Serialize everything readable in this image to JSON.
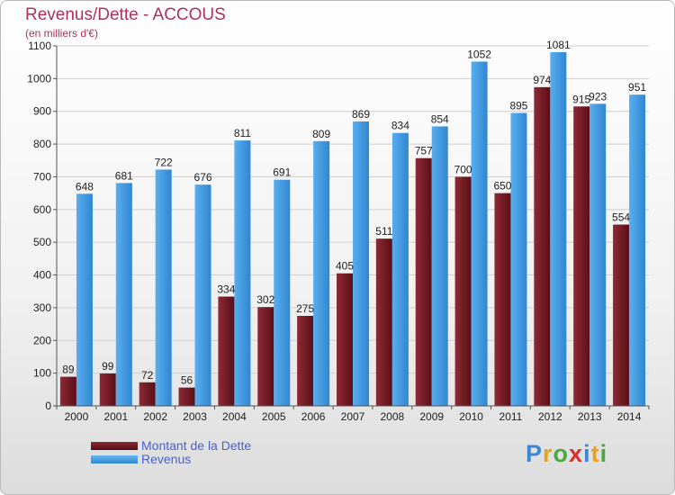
{
  "header": {
    "title": "Revenus/Dette - ACCOUS",
    "subtitle": "(en milliers d'€)"
  },
  "chart_data": {
    "type": "bar",
    "categories": [
      "2000",
      "2001",
      "2002",
      "2003",
      "2004",
      "2005",
      "2006",
      "2007",
      "2008",
      "2009",
      "2010",
      "2011",
      "2012",
      "2013",
      "2014"
    ],
    "series": [
      {
        "name": "Montant de la Dette",
        "color": "#7a1e28",
        "values": [
          89,
          99,
          72,
          56,
          334,
          302,
          275,
          405,
          511,
          757,
          700,
          650,
          974,
          915,
          554
        ]
      },
      {
        "name": "Revenus",
        "color": "#3d97e0",
        "values": [
          648,
          681,
          722,
          676,
          811,
          691,
          809,
          869,
          834,
          854,
          1052,
          895,
          1081,
          923,
          951
        ]
      }
    ],
    "ylim": [
      0,
      1100
    ],
    "yticks": [
      0,
      100,
      200,
      300,
      400,
      500,
      600,
      700,
      800,
      900,
      1000,
      1100
    ],
    "grid": true,
    "legend_position": "bottom-left"
  },
  "logo": {
    "letters": [
      {
        "ch": "P",
        "color": "#3d86d6"
      },
      {
        "ch": "r",
        "color": "#e8a21a"
      },
      {
        "ch": "o",
        "color": "#4aa83c"
      },
      {
        "ch": "x",
        "color": "#d4312c"
      },
      {
        "ch": "i",
        "color": "#3d86d6"
      },
      {
        "ch": "t",
        "color": "#e8a21a"
      },
      {
        "ch": "i",
        "color": "#4aa83c"
      }
    ]
  }
}
